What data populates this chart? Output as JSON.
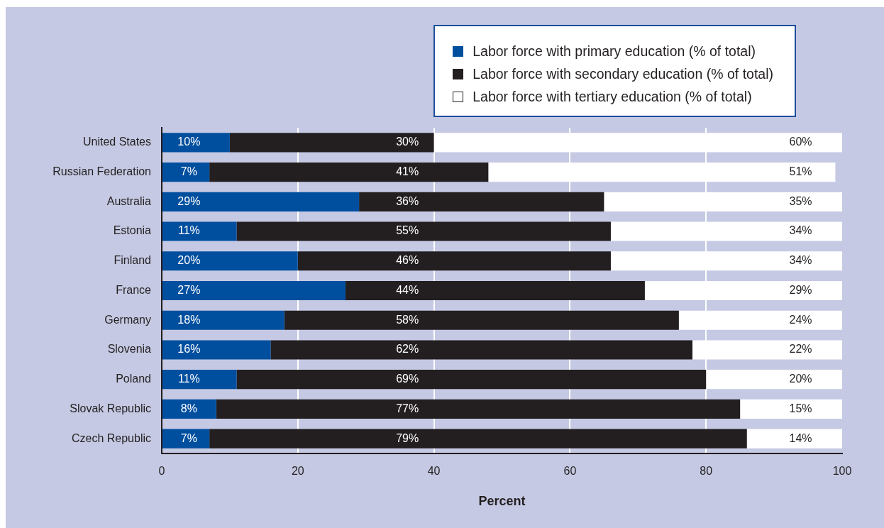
{
  "chart_data": {
    "type": "bar",
    "orientation": "horizontal",
    "stacked": true,
    "categories": [
      "United States",
      "Russian Federation",
      "Australia",
      "Estonia",
      "Finland",
      "France",
      "Germany",
      "Slovenia",
      "Poland",
      "Slovak Republic",
      "Czech Republic"
    ],
    "series": [
      {
        "name": "Labor force with primary education (% of total)",
        "color": "#004f9f",
        "values": [
          10,
          7,
          29,
          11,
          20,
          27,
          18,
          16,
          11,
          8,
          7
        ],
        "value_labels": [
          "10%",
          "7%",
          "29%",
          "11%",
          "20%",
          "27%",
          "18%",
          "16%",
          "11%",
          "8%",
          "7%"
        ]
      },
      {
        "name": "Labor force with secondary education (% of total)",
        "color": "#231f20",
        "values": [
          30,
          41,
          36,
          55,
          46,
          44,
          58,
          62,
          69,
          77,
          79
        ],
        "value_labels": [
          "30%",
          "41%",
          "36%",
          "55%",
          "46%",
          "44%",
          "58%",
          "62%",
          "69%",
          "77%",
          "79%"
        ]
      },
      {
        "name": "Labor force with tertiary education (% of total)",
        "color": "#ffffff",
        "values": [
          60,
          51,
          35,
          34,
          34,
          29,
          24,
          22,
          20,
          15,
          14
        ],
        "value_labels": [
          "60%",
          "51%",
          "35%",
          "34%",
          "34%",
          "29%",
          "24%",
          "22%",
          "20%",
          "15%",
          "14%"
        ]
      }
    ],
    "xlim": [
      0,
      100
    ],
    "xticks": [
      0,
      20,
      40,
      60,
      80,
      100
    ],
    "xlabel": "Percent",
    "grid": "x",
    "legend": "top right"
  }
}
